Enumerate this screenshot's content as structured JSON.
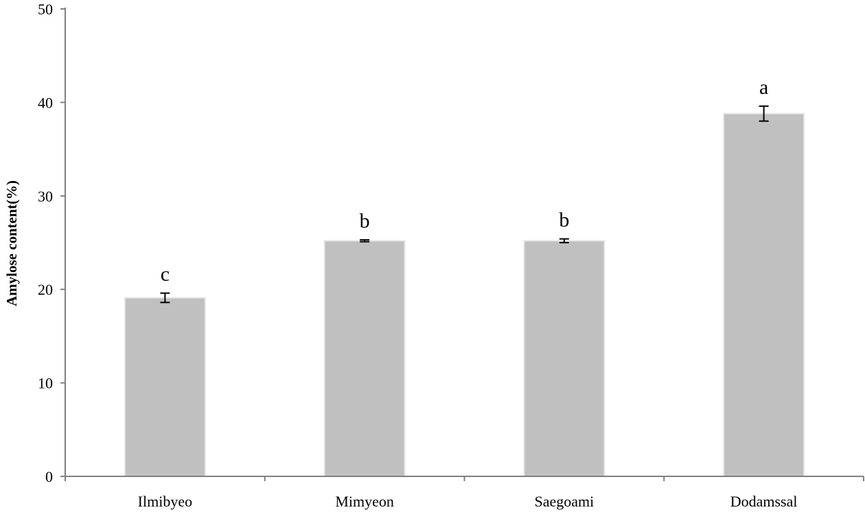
{
  "chart_data": {
    "type": "bar",
    "title": "",
    "xlabel": "",
    "ylabel": "Amylose content(%)",
    "ylim": [
      0,
      50
    ],
    "yticks": [
      0,
      10,
      20,
      30,
      40,
      50
    ],
    "categories": [
      "Ilmibyeo",
      "Mimyeon",
      "Saegoami",
      "Dodamssal"
    ],
    "values": [
      19.1,
      25.2,
      25.2,
      38.8
    ],
    "errors": [
      0.5,
      0.1,
      0.2,
      0.8
    ],
    "significance_labels": [
      "c",
      "b",
      "b",
      "a"
    ],
    "grid": false,
    "legend": "none",
    "colors": {
      "bar_fill": "#c0c0c0",
      "bar_edge": "#e6e6e6",
      "axis": "#808080",
      "text": "#000000"
    }
  }
}
